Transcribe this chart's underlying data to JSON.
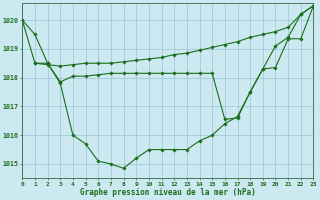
{
  "s1_x": [
    0,
    1,
    2,
    3,
    4,
    5,
    6,
    7,
    8,
    9,
    10,
    11,
    12,
    13,
    14,
    15,
    16,
    17,
    18,
    19,
    20,
    21,
    22,
    23
  ],
  "s1_y": [
    1020.0,
    1019.5,
    1018.5,
    1017.8,
    1016.0,
    1015.7,
    1015.1,
    1015.0,
    1014.85,
    1015.2,
    1015.5,
    1015.5,
    1015.5,
    1015.5,
    1015.8,
    1016.0,
    1016.4,
    1016.65,
    1017.5,
    1018.3,
    1019.1,
    1019.4,
    1020.2,
    1020.5
  ],
  "s2_x": [
    0,
    1,
    2,
    3,
    4,
    5,
    6,
    7,
    8,
    9,
    10,
    11,
    12,
    13,
    14,
    15,
    16,
    17,
    18,
    19,
    20,
    21,
    22,
    23
  ],
  "s2_y": [
    1020.0,
    1018.5,
    1018.45,
    1018.4,
    1018.45,
    1018.5,
    1018.5,
    1018.5,
    1018.55,
    1018.6,
    1018.65,
    1018.7,
    1018.8,
    1018.85,
    1018.95,
    1019.05,
    1019.15,
    1019.25,
    1019.4,
    1019.5,
    1019.6,
    1019.75,
    1020.2,
    1020.5
  ],
  "s3_x": [
    1,
    2,
    3,
    4,
    5,
    6,
    7,
    8,
    9,
    10,
    11,
    12,
    13,
    14,
    15,
    16,
    17,
    18,
    19,
    20,
    21,
    22,
    23
  ],
  "s3_y": [
    1018.5,
    1018.5,
    1017.85,
    1018.05,
    1018.05,
    1018.1,
    1018.15,
    1018.15,
    1018.15,
    1018.15,
    1018.15,
    1018.15,
    1018.15,
    1018.15,
    1018.15,
    1016.55,
    1016.6,
    1017.5,
    1018.3,
    1018.35,
    1019.35,
    1019.35,
    1020.5
  ],
  "line_color": "#1a6e1a",
  "marker": "D",
  "markersize": 1.8,
  "linewidth": 0.8,
  "background_color": "#cce8f0",
  "grid_color": "#88bbcc",
  "xlabel": "Graphe pression niveau de la mer (hPa)",
  "xlabel_color": "#1a6e1a",
  "tick_color": "#1a6e1a",
  "xlim": [
    0,
    23
  ],
  "ylim": [
    1014.5,
    1020.6
  ],
  "yticks": [
    1015,
    1016,
    1017,
    1018,
    1019,
    1020
  ],
  "xticks": [
    0,
    1,
    2,
    3,
    4,
    5,
    6,
    7,
    8,
    9,
    10,
    11,
    12,
    13,
    14,
    15,
    16,
    17,
    18,
    19,
    20,
    21,
    22,
    23
  ],
  "tick_fontsize": 4.5,
  "xlabel_fontsize": 5.5
}
